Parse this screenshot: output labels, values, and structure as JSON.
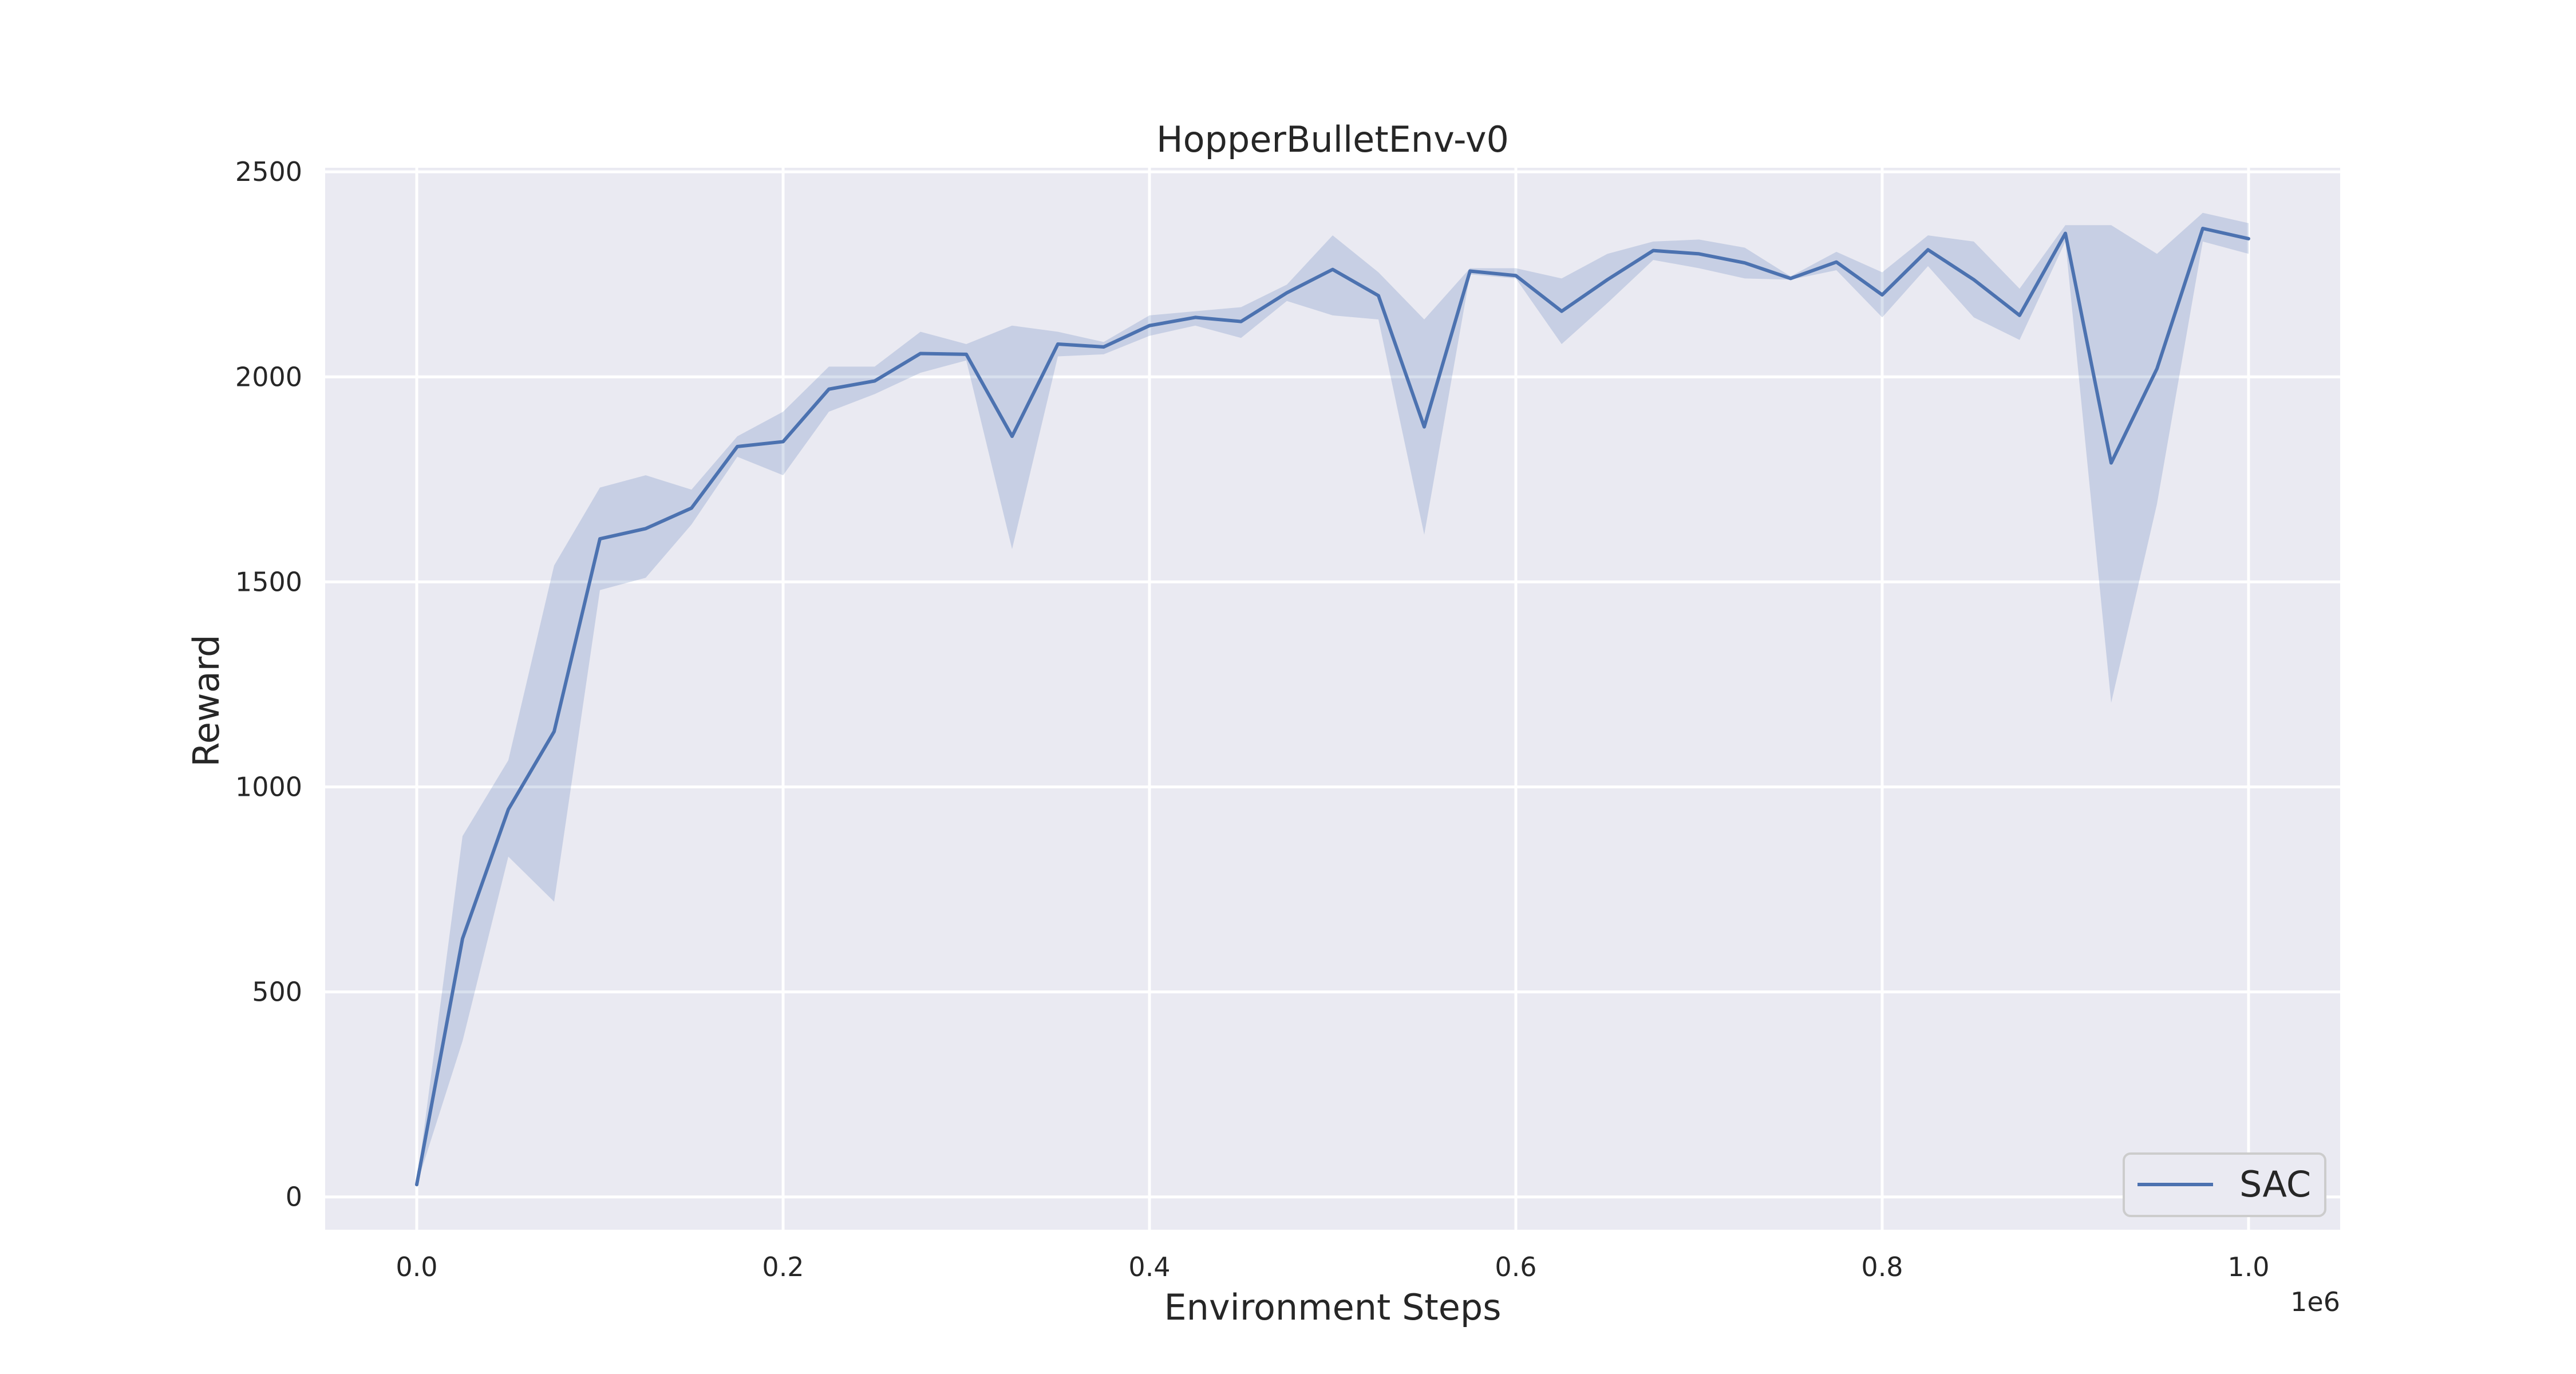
{
  "chart_data": {
    "type": "line",
    "title": "HopperBulletEnv-v0",
    "xlabel": "Environment Steps",
    "ylabel": "Reward",
    "x_offset_label": "1e6",
    "x_scale": 1000000,
    "xlim": [
      -50000,
      1050000
    ],
    "ylim": [
      -80,
      2510
    ],
    "xticks": [
      0,
      200000,
      400000,
      600000,
      800000,
      1000000
    ],
    "xtick_labels": [
      "0.0",
      "0.2",
      "0.4",
      "0.6",
      "0.8",
      "1.0"
    ],
    "yticks": [
      0,
      500,
      1000,
      1500,
      2000,
      2500
    ],
    "ytick_labels": [
      "0",
      "500",
      "1000",
      "1500",
      "2000",
      "2500"
    ],
    "grid": true,
    "legend_position": "bottom-right",
    "colors": {
      "axes_bg": "#EAEAF2",
      "grid": "#FFFFFF",
      "line": "#4C72B0",
      "band": "#4C72B0",
      "text": "#262626",
      "legend_border": "#CCCCCC",
      "legend_bg": "#EAEAF2"
    },
    "x": [
      0,
      25000,
      50000,
      75000,
      100000,
      125000,
      150000,
      175000,
      200000,
      225000,
      250000,
      275000,
      300000,
      325000,
      350000,
      375000,
      400000,
      425000,
      450000,
      475000,
      500000,
      525000,
      550000,
      575000,
      600000,
      625000,
      650000,
      675000,
      700000,
      725000,
      750000,
      775000,
      800000,
      825000,
      850000,
      875000,
      900000,
      925000,
      950000,
      975000,
      1000000
    ],
    "series": [
      {
        "name": "SAC",
        "values": [
          30,
          630,
          945,
          1135,
          1605,
          1630,
          1680,
          1830,
          1842,
          1970,
          1990,
          2057,
          2055,
          1855,
          2080,
          2073,
          2125,
          2145,
          2135,
          2205,
          2262,
          2198,
          1878,
          2258,
          2247,
          2160,
          2237,
          2308,
          2300,
          2278,
          2240,
          2280,
          2200,
          2310,
          2237,
          2150,
          2350,
          1790,
          2020,
          2362,
          2337
        ],
        "lower": [
          30,
          380,
          830,
          720,
          1480,
          1510,
          1640,
          1805,
          1760,
          1915,
          1958,
          2010,
          2040,
          1580,
          2050,
          2055,
          2100,
          2125,
          2095,
          2185,
          2150,
          2140,
          1615,
          2250,
          2240,
          2080,
          2180,
          2285,
          2265,
          2240,
          2237,
          2260,
          2145,
          2270,
          2145,
          2090,
          2330,
          1205,
          1690,
          2330,
          2300
        ],
        "upper": [
          30,
          880,
          1065,
          1540,
          1730,
          1760,
          1725,
          1855,
          1915,
          2025,
          2025,
          2110,
          2080,
          2125,
          2110,
          2085,
          2150,
          2160,
          2170,
          2225,
          2345,
          2255,
          2140,
          2265,
          2265,
          2240,
          2300,
          2330,
          2335,
          2315,
          2245,
          2305,
          2255,
          2345,
          2330,
          2215,
          2370,
          2370,
          2300,
          2400,
          2375
        ]
      }
    ]
  }
}
